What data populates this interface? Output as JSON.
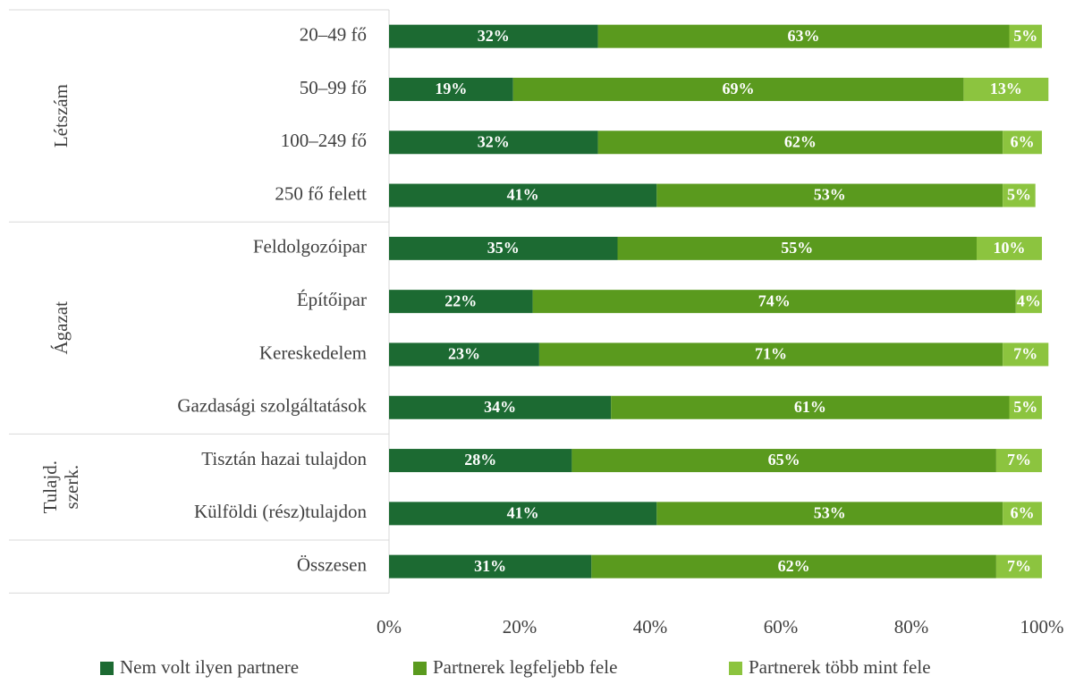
{
  "chart_data": {
    "type": "stacked-bar-horizontal",
    "categories": [
      "20–49 fő",
      "50–99 fő",
      "100–249 fő",
      "250 fő felett",
      "Feldolgozóipar",
      "Építőipar",
      "Kereskedelem",
      "Gazdasági szolgáltatások",
      "Tisztán hazai tulajdon",
      "Külföldi (rész)tulajdon",
      "Összesen"
    ],
    "groups": [
      {
        "label_lines": [
          "Létszám"
        ],
        "rows": 4
      },
      {
        "label_lines": [
          "Ágazat"
        ],
        "rows": 4
      },
      {
        "label_lines": [
          "Tulajd.",
          "szerk."
        ],
        "rows": 2
      }
    ],
    "series": [
      {
        "name": "Nem volt ilyen partnere",
        "color": "#1c6a32",
        "values": [
          32,
          19,
          32,
          41,
          35,
          22,
          23,
          34,
          28,
          41,
          31
        ],
        "value_labels": [
          "32%",
          "19%",
          "32%",
          "41%",
          "35%",
          "22%",
          "23%",
          "34%",
          "28%",
          "41%",
          "31%"
        ]
      },
      {
        "name": "Partnerek legfeljebb fele",
        "color": "#5a9a1e",
        "values": [
          63,
          69,
          62,
          53,
          55,
          74,
          71,
          61,
          65,
          53,
          62
        ],
        "value_labels": [
          "63%",
          "69%",
          "62%",
          "53%",
          "55%",
          "74%",
          "71%",
          "61%",
          "65%",
          "53%",
          "62%"
        ]
      },
      {
        "name": "Partnerek több mint fele",
        "color": "#8cc43f",
        "values": [
          5,
          13,
          6,
          5,
          10,
          4,
          7,
          5,
          7,
          6,
          7
        ],
        "value_labels": [
          "5%",
          "13%",
          "6%",
          "5%",
          "10%",
          "4%",
          "7%",
          "5%",
          "7%",
          "6%",
          "7%"
        ]
      }
    ],
    "xlim": [
      0,
      100
    ],
    "xticks": [
      {
        "value": 0,
        "label": "0%"
      },
      {
        "value": 20,
        "label": "20%"
      },
      {
        "value": 40,
        "label": "40%"
      },
      {
        "value": 60,
        "label": "60%"
      },
      {
        "value": 80,
        "label": "80%"
      },
      {
        "value": 100,
        "label": "100%"
      }
    ],
    "legend": "bottom"
  }
}
